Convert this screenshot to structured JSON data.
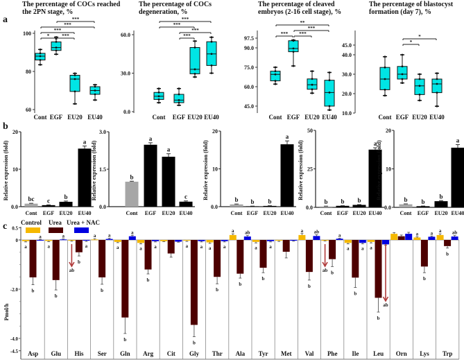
{
  "panel_labels": {
    "a": "a",
    "b": "b",
    "c": "c"
  },
  "colors": {
    "box_fill": "#00e5e5",
    "bar_control": "#a6a6a6",
    "bar_treated": "#000000",
    "control": "#f5b800",
    "urea": "#4d0000",
    "urea_nac": "#0000e0",
    "arrow": "#b03a3a"
  },
  "chart_data": [
    {
      "type": "box",
      "panel": "a",
      "title": [
        "The percentage of COCs reached",
        "the 2PN stage, %"
      ],
      "categories": [
        "Cont",
        "EGF",
        "EU20",
        "EU40"
      ],
      "yticks": [
        {
          "v": 60,
          "label": "60"
        },
        {
          "v": 80,
          "label": "80"
        },
        {
          "v": 100,
          "label": "100"
        }
      ],
      "ylim": [
        60,
        100
      ],
      "boxes": [
        {
          "min": 83.5,
          "q1": 86,
          "median": 88,
          "q3": 89.5,
          "max": 91.5
        },
        {
          "min": 89,
          "q1": 91,
          "median": 92.5,
          "q3": 95.5,
          "max": 98
        },
        {
          "min": 63,
          "q1": 69.5,
          "median": 76,
          "q3": 78,
          "max": 79
        },
        {
          "min": 65,
          "q1": 68,
          "median": 70,
          "q3": 72,
          "max": 73
        }
      ],
      "significance": [
        {
          "from": 0,
          "to": 1,
          "label": "*"
        },
        {
          "from": 1,
          "to": 2,
          "label": "***"
        },
        {
          "from": 0,
          "to": 2,
          "label": "***"
        },
        {
          "from": 0,
          "to": 3,
          "label": "***"
        },
        {
          "from": 1,
          "to": 3,
          "label": "***"
        }
      ]
    },
    {
      "type": "box",
      "panel": "a",
      "title": [
        "The percentage of COCs",
        "degeneration, %"
      ],
      "categories": [
        "Cont",
        "EGF",
        "EU20",
        "EU40"
      ],
      "yticks": [
        {
          "v": 0,
          "label": "0.0"
        },
        {
          "v": 30,
          "label": "30.0"
        },
        {
          "v": 60,
          "label": "60.0"
        }
      ],
      "ylim": [
        0,
        60
      ],
      "boxes": [
        {
          "min": 7,
          "q1": 9.5,
          "median": 12,
          "q3": 15,
          "max": 18
        },
        {
          "min": 5,
          "q1": 7,
          "median": 9,
          "q3": 13.5,
          "max": 18
        },
        {
          "min": 27,
          "q1": 29.5,
          "median": 33,
          "q3": 50,
          "max": 55
        },
        {
          "min": 30,
          "q1": 36,
          "median": 45,
          "q3": 54.5,
          "max": 58
        }
      ],
      "significance": [
        {
          "from": 1,
          "to": 2,
          "label": "***"
        },
        {
          "from": 1,
          "to": 3,
          "label": "***"
        },
        {
          "from": 0,
          "to": 2,
          "label": "***"
        },
        {
          "from": 0,
          "to": 3,
          "label": "***"
        }
      ]
    },
    {
      "type": "box",
      "panel": "a",
      "title": [
        "The percentage of cleaved",
        "embryos (2-16 cell stage), %"
      ],
      "categories": [
        "Cont",
        "EGF",
        "EU20",
        "EU40"
      ],
      "yticks": [
        {
          "v": 45,
          "label": "45.0"
        },
        {
          "v": 60,
          "label": "60.0"
        },
        {
          "v": 75,
          "label": "75.0"
        },
        {
          "v": 90,
          "label": "90.0"
        },
        {
          "v": 97.5,
          "label": "97.5"
        }
      ],
      "ylim": [
        41,
        97.5
      ],
      "boxes": [
        {
          "min": 62,
          "q1": 64.5,
          "median": 69.5,
          "q3": 72,
          "max": 75
        },
        {
          "min": 76,
          "q1": 87,
          "median": 89.5,
          "q3": 95.5,
          "max": 96
        },
        {
          "min": 55,
          "q1": 58,
          "median": 61.5,
          "q3": 66,
          "max": 72
        },
        {
          "min": 42,
          "q1": 45,
          "median": 55.5,
          "q3": 65,
          "max": 71
        }
      ],
      "significance": [
        {
          "from": 0,
          "to": 1,
          "label": "***"
        },
        {
          "from": 1,
          "to": 2,
          "label": "***"
        },
        {
          "from": 1,
          "to": 3,
          "label": "***"
        },
        {
          "from": 0,
          "to": 3,
          "label": "**"
        }
      ]
    },
    {
      "type": "box",
      "panel": "a",
      "title": [
        "The percentage of blastocyst",
        "formation (day 7), %"
      ],
      "categories": [
        "Cont",
        "EGF",
        "EU20",
        "EU40"
      ],
      "yticks": [
        {
          "v": 10,
          "label": "10.0"
        },
        {
          "v": 20,
          "label": "20.0"
        },
        {
          "v": 30,
          "label": "30.0"
        },
        {
          "v": 40,
          "label": "40.0"
        },
        {
          "v": 45,
          "label": "45.0"
        }
      ],
      "ylim": [
        10,
        45
      ],
      "boxes": [
        {
          "min": 19,
          "q1": 22,
          "median": 27.5,
          "q3": 33.5,
          "max": 39
        },
        {
          "min": 25.5,
          "q1": 27.5,
          "median": 30,
          "q3": 34,
          "max": 40
        },
        {
          "min": 16.5,
          "q1": 19.5,
          "median": 24,
          "q3": 27.5,
          "max": 30
        },
        {
          "min": 13.5,
          "q1": 20.5,
          "median": 25,
          "q3": 27.5,
          "max": 30.5
        }
      ],
      "significance": [
        {
          "from": 1,
          "to": 2,
          "label": "*"
        },
        {
          "from": 1,
          "to": 3,
          "label": "*"
        }
      ]
    },
    {
      "type": "bar",
      "panel": "b",
      "ylabel": "Relative expression (fold)",
      "categories": [
        "Cont",
        "EGF",
        "EU20",
        "EU40"
      ],
      "yticks": [
        {
          "v": 0,
          "label": "0.0"
        },
        {
          "v": 10,
          "label": "10"
        },
        {
          "v": 20,
          "label": "20"
        }
      ],
      "ylim": [
        0,
        20
      ],
      "values": [
        0.8,
        0.4,
        1.3,
        15.5
      ],
      "errors": [
        0.1,
        0.1,
        0.2,
        0.7
      ],
      "letters": [
        "bc",
        "c",
        "b",
        "a"
      ]
    },
    {
      "type": "bar",
      "panel": "b",
      "ylabel": "Relative expression (fold)",
      "categories": [
        "Cont",
        "EGF",
        "EU20",
        "EU40"
      ],
      "yticks": [
        {
          "v": 0,
          "label": "0.0"
        },
        {
          "v": 1.5,
          "label": "1.5"
        },
        {
          "v": 3.0,
          "label": "3.0"
        }
      ],
      "ylim": [
        0,
        3
      ],
      "values": [
        1.0,
        2.48,
        2.0,
        0.2
      ],
      "errors": [
        0.02,
        0.08,
        0.12,
        0.03
      ],
      "letters": [
        "b",
        "a",
        "a",
        "c"
      ]
    },
    {
      "type": "bar",
      "panel": "b",
      "ylabel": "Relative expression (fold)",
      "categories": [
        "Cont",
        "EGF",
        "EU20",
        "EU40"
      ],
      "yticks": [
        {
          "v": 0,
          "label": "0.0"
        },
        {
          "v": 10,
          "label": "10"
        },
        {
          "v": 20,
          "label": "20"
        }
      ],
      "ylim": [
        0,
        20
      ],
      "values": [
        0.6,
        0.1,
        0.2,
        16.5
      ],
      "errors": [
        0.1,
        0.05,
        0.05,
        0.9
      ],
      "letters": [
        "b",
        "b",
        "b",
        "a"
      ]
    },
    {
      "type": "bar",
      "panel": "b",
      "ylabel": "Relative expression (fold)",
      "categories": [
        "Cont",
        "EGF",
        "EU20",
        "EU40"
      ],
      "yticks": [
        {
          "v": 0,
          "label": "0.0"
        },
        {
          "v": 25,
          "label": "25"
        },
        {
          "v": 50,
          "label": "50"
        }
      ],
      "ylim": [
        0,
        50
      ],
      "values": [
        0.6,
        1.0,
        1.6,
        37.5
      ],
      "errors": [
        0.2,
        0.1,
        0.2,
        1.2
      ],
      "letters": [
        "b",
        "b",
        "b",
        "a"
      ]
    },
    {
      "type": "bar",
      "panel": "b",
      "ylabel": "Relative expression (fold)",
      "categories": [
        "Cont",
        "EGF",
        "EU20",
        "EU40"
      ],
      "yticks": [
        {
          "v": 0,
          "label": "0.0"
        },
        {
          "v": 10,
          "label": "10"
        },
        {
          "v": 20,
          "label": "20"
        }
      ],
      "ylim": [
        0,
        20
      ],
      "values": [
        0.8,
        0.3,
        1.6,
        15.5
      ],
      "errors": [
        0.1,
        0.05,
        0.15,
        0.8
      ],
      "letters": [
        "b",
        "b",
        "b",
        "a"
      ]
    },
    {
      "type": "bar",
      "panel": "c",
      "ylabel": "Pmol/h",
      "legend": [
        "Control",
        "Urea",
        "Urea + NAC"
      ],
      "yticks": [
        {
          "v": 0.5,
          "label": "0.5"
        },
        {
          "v": 0,
          "label": "0"
        },
        {
          "v": -2.0,
          "label": "-2.0"
        },
        {
          "v": -4.0,
          "label": "-4.0"
        },
        {
          "v": -4.5,
          "label": "-4.5"
        }
      ],
      "ylim": [
        -4.5,
        0.5
      ],
      "categories": [
        "Asp",
        "Glu",
        "His",
        "Ser",
        "Gln",
        "Arg",
        "Cit",
        "Gly",
        "Thr",
        "Ala",
        "Tyr",
        "Met",
        "Val",
        "Phe",
        "Ile",
        "Leu",
        "Orn",
        "Lys",
        "Trp"
      ],
      "series": [
        {
          "name": "Control",
          "values": [
            -0.05,
            -0.04,
            -0.02,
            0.02,
            -0.08,
            -0.12,
            -0.05,
            -0.03,
            -0.1,
            0.2,
            -0.08,
            -0.03,
            0.2,
            -0.02,
            -0.12,
            -0.08,
            0.25,
            0.1,
            0.2
          ],
          "errors": [
            0.03,
            0.03,
            0.03,
            0.03,
            0.03,
            0.04,
            0.02,
            0.03,
            0.04,
            0.05,
            0.04,
            0.03,
            0.06,
            0.02,
            0.04,
            0.04,
            0.05,
            0.03,
            0.05
          ],
          "letters": [
            "a",
            "a",
            "ab",
            "a",
            "a",
            "a",
            "",
            "a",
            "a",
            "a",
            "a",
            "",
            "a",
            "ab",
            "a",
            "a",
            "",
            "a",
            "a"
          ],
          "arrows": [
            false,
            false,
            true,
            false,
            false,
            false,
            false,
            false,
            false,
            false,
            false,
            false,
            false,
            true,
            false,
            false,
            false,
            false,
            false
          ]
        },
        {
          "name": "Urea",
          "values": [
            -1.52,
            -1.63,
            -0.5,
            -1.52,
            -3.15,
            -1.2,
            -0.55,
            -3.45,
            -1.5,
            -1.37,
            -1.13,
            -0.48,
            -1.3,
            -0.78,
            -1.53,
            -2.35,
            0.15,
            -1.08,
            -0.25
          ],
          "errors": [
            0.3,
            0.4,
            0.15,
            0.28,
            0.65,
            0.18,
            0.15,
            0.48,
            0.28,
            0.18,
            0.2,
            0.25,
            0.33,
            0.3,
            0.4,
            0.58,
            0.05,
            0.25,
            0.08
          ],
          "letters": [
            "b",
            "b",
            "b",
            "b",
            "b",
            "b",
            "",
            "b",
            "b",
            "b",
            "b",
            "",
            "b",
            "b",
            "b",
            "b",
            "",
            "b",
            "b"
          ],
          "arrows": [
            false,
            false,
            false,
            false,
            false,
            false,
            false,
            false,
            false,
            false,
            false,
            false,
            false,
            false,
            false,
            false,
            false,
            false,
            false
          ]
        },
        {
          "name": "Urea + NAC",
          "values": [
            0.0,
            0.02,
            -0.03,
            0.04,
            0.15,
            -0.05,
            -0.07,
            -0.05,
            -0.05,
            0.14,
            -0.05,
            -0.03,
            0.16,
            0.05,
            -0.12,
            -0.18,
            0.25,
            0.13,
            0.14
          ],
          "errors": [
            0.02,
            0.02,
            0.03,
            0.03,
            0.04,
            0.03,
            0.02,
            0.03,
            0.03,
            0.04,
            0.03,
            0.02,
            0.05,
            0.02,
            0.04,
            0.03,
            0.06,
            0.03,
            0.04
          ],
          "letters": [
            "a",
            "a",
            "a",
            "a",
            "a",
            "a",
            "",
            "a",
            "a",
            "ab",
            "a",
            "",
            "ab",
            "a",
            "a",
            "ab",
            "",
            "a",
            "ab"
          ],
          "arrows": [
            false,
            false,
            false,
            false,
            false,
            false,
            false,
            false,
            false,
            false,
            false,
            false,
            false,
            false,
            false,
            true,
            false,
            false,
            false
          ]
        }
      ]
    }
  ]
}
